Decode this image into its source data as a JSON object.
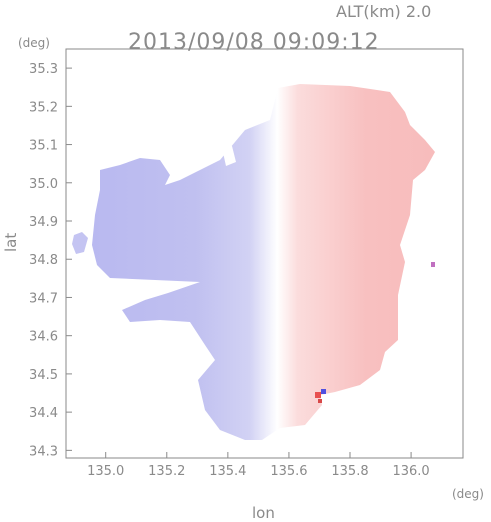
{
  "header": {
    "alt_label": "ALT(km) 2.0",
    "timestamp": "2013/09/08 09:09:12"
  },
  "chart_data": {
    "type": "heatmap",
    "title": "2013/09/08 09:09:12",
    "xlabel": "lon",
    "ylabel": "lat",
    "xunit": "(deg)",
    "yunit": "(deg)",
    "xlim": [
      134.87,
      136.17
    ],
    "ylim": [
      34.28,
      35.35
    ],
    "xticks": [
      "135.0",
      "135.2",
      "135.4",
      "135.6",
      "135.8",
      "136.0"
    ],
    "yticks": [
      "34.3",
      "34.4",
      "34.5",
      "34.6",
      "34.7",
      "34.8",
      "34.9",
      "35.0",
      "35.1",
      "35.2",
      "35.3"
    ],
    "colormap": "diverging blue-white-red",
    "colors": {
      "negative_strong": "#b9b9f0",
      "negative_weak": "#e2e2f8",
      "neutral": "#ffffff",
      "positive_weak": "#fbdddd",
      "positive_strong": "#f7b6b6",
      "axis": "#8a8a8a"
    },
    "grid": false
  }
}
